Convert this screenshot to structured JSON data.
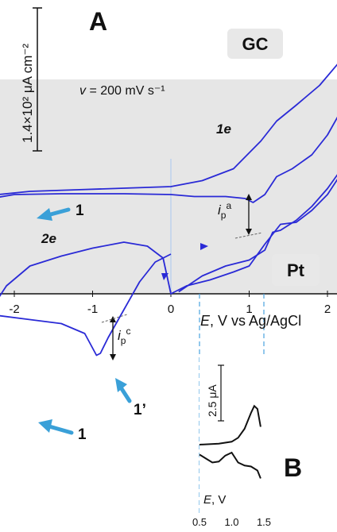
{
  "figure": {
    "panel_a": "A",
    "panel_b": "B",
    "scale_bar_label": "1.4×10² μA cm⁻²",
    "scan_rate": {
      "symbol": "v",
      "text": " = 200 mV s⁻¹"
    },
    "electrode_gc": "GC",
    "electrode_pt": "Pt",
    "label_1e": "1e",
    "label_2e": "2e",
    "peak_1": "1",
    "peak_1_prime": "1’",
    "peak_1_lower": "1",
    "ipa": {
      "main": "i",
      "sub": "p",
      "sup": "a"
    },
    "ipc": {
      "main": "i",
      "sub": "p",
      "sup": "c"
    },
    "xaxis": {
      "var": "E",
      "label": ", V vs Ag/AgCl"
    },
    "inset_scale_label": "2.5 μA",
    "inset_xaxis": {
      "var": "E",
      "label": ", V"
    }
  },
  "chart_data": [
    {
      "type": "line",
      "name": "A",
      "xlabel": "E, V vs Ag/AgCl",
      "ylabel": "",
      "xlim": [
        -2.6,
        2.6
      ],
      "ticks": [
        -2,
        -1,
        0,
        1,
        2
      ],
      "tick_labels": [
        "-2",
        "-1",
        "0",
        "1",
        "2"
      ],
      "colors": {
        "trace": "#2a2ad6",
        "highlight": "#e6e6e6",
        "arrow": "#3aa0d8",
        "guide": "#4aa3df"
      },
      "series": [
        {
          "x": [
            -2.45,
            -2.35,
            -2.2,
            -1.8,
            -1.2,
            -0.6,
            0.0,
            0.4,
            0.8,
            1.0,
            1.15,
            1.35,
            1.6,
            1.9,
            2.2,
            2.45,
            2.52
          ],
          "y": [
            2.0,
            2.35,
            2.5,
            2.58,
            2.62,
            2.66,
            2.7,
            2.85,
            3.15,
            3.55,
            3.85,
            4.35,
            4.75,
            5.25,
            5.95,
            6.8,
            7.3
          ]
        },
        {
          "x": [
            2.52,
            2.4,
            2.2,
            2.0,
            1.8,
            1.55,
            1.35,
            1.2,
            1.05,
            0.95,
            0.7,
            0.3,
            0.0,
            -0.6,
            -1.4,
            -2.0,
            -2.3,
            -2.5,
            -2.6,
            -2.62
          ],
          "y": [
            7.3,
            5.8,
            4.7,
            4.0,
            3.5,
            3.15,
            2.95,
            2.5,
            2.3,
            2.4,
            2.45,
            2.45,
            2.5,
            2.52,
            2.52,
            2.5,
            2.4,
            2.0,
            -0.5,
            -1.5
          ]
        },
        {
          "x": [
            2.6,
            2.4,
            2.2,
            2.0,
            1.8,
            1.6,
            1.4,
            1.3,
            1.2,
            1.0,
            0.7,
            0.4,
            0.1
          ],
          "y": [
            5.3,
            4.0,
            3.2,
            2.65,
            2.2,
            1.85,
            1.6,
            1.55,
            1.1,
            0.85,
            0.7,
            0.45,
            0.05
          ]
        },
        {
          "x": [
            0.0,
            -0.2,
            -0.4,
            -0.6,
            -0.8,
            -0.9,
            -0.95,
            -1.1,
            -1.4,
            -1.8,
            -2.2,
            -2.4,
            -2.5,
            -2.55
          ],
          "y": [
            1.0,
            0.8,
            0.3,
            -0.4,
            -1.1,
            -1.5,
            -1.55,
            -1.0,
            -0.75,
            -0.65,
            -0.55,
            -0.9,
            -2.5,
            -4.0
          ]
        },
        {
          "x": [
            -2.55,
            -2.45,
            -2.3,
            -2.1,
            -1.8,
            -1.4,
            -1.0,
            -0.6,
            -0.3,
            -0.1,
            0.0,
            0.2,
            0.5,
            0.8,
            1.0,
            1.2,
            1.4,
            1.6,
            1.8,
            2.0,
            2.2,
            2.4,
            2.5
          ],
          "y": [
            -4.0,
            -3.2,
            -0.4,
            0.2,
            0.7,
            0.95,
            1.15,
            1.3,
            1.2,
            0.9,
            0.0,
            0.2,
            0.35,
            0.55,
            0.7,
            1.25,
            1.75,
            1.8,
            2.1,
            2.5,
            3.1,
            3.75,
            4.2
          ]
        }
      ]
    },
    {
      "type": "line",
      "name": "B",
      "xlabel": "E, V",
      "xlim": [
        0.5,
        1.5
      ],
      "ticks": [
        0.5,
        1.0,
        1.5
      ],
      "tick_labels": [
        "0.5",
        "1.0",
        "1.5"
      ],
      "series": [
        {
          "x": [
            0.5,
            0.8,
            1.0,
            1.1,
            1.2,
            1.3,
            1.35,
            1.4,
            1.45
          ],
          "y": [
            0.0,
            0.05,
            0.15,
            0.35,
            0.8,
            1.6,
            1.95,
            1.8,
            0.9
          ]
        },
        {
          "x": [
            1.45,
            1.4,
            1.3,
            1.2,
            1.1,
            1.0,
            0.9,
            0.8,
            0.7,
            0.6,
            0.5
          ],
          "y": [
            -1.7,
            -1.3,
            -1.1,
            -1.05,
            -0.9,
            -0.4,
            -0.55,
            -0.85,
            -0.9,
            -0.7,
            -0.5
          ]
        }
      ]
    }
  ]
}
